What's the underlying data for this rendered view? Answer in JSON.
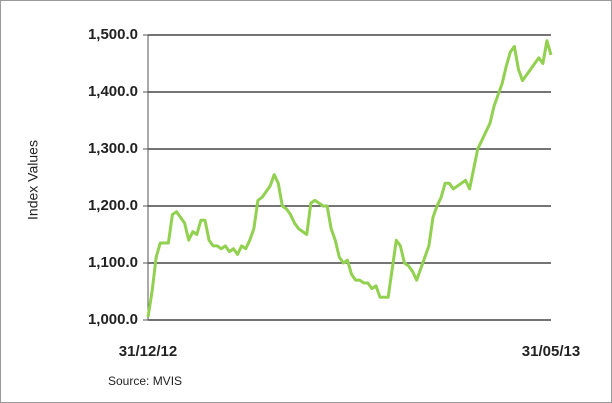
{
  "chart_data": {
    "type": "line",
    "y_label": "Index Values",
    "source": "Source: MVIS",
    "categories": [
      "31/12/12",
      null,
      null,
      null,
      null,
      null,
      null,
      null,
      null,
      null,
      null,
      null,
      null,
      null,
      null,
      null,
      null,
      null,
      null,
      null,
      null,
      null,
      null,
      null,
      null,
      null,
      null,
      null,
      null,
      null,
      null,
      null,
      null,
      null,
      null,
      null,
      null,
      null,
      null,
      null,
      null,
      null,
      null,
      null,
      null,
      null,
      null,
      null,
      null,
      null,
      null,
      null,
      null,
      null,
      null,
      null,
      null,
      null,
      null,
      null,
      null,
      null,
      null,
      null,
      null,
      null,
      null,
      null,
      null,
      null,
      null,
      null,
      null,
      null,
      null,
      null,
      null,
      null,
      null,
      null,
      null,
      null,
      null,
      null,
      null,
      null,
      null,
      null,
      null,
      null,
      null,
      null,
      null,
      null,
      null,
      null,
      null,
      null,
      null,
      "31/05/13"
    ],
    "values": [
      1005,
      1050,
      1110,
      1135,
      1135,
      1135,
      1185,
      1190,
      1180,
      1170,
      1140,
      1155,
      1150,
      1175,
      1175,
      1140,
      1130,
      1130,
      1125,
      1130,
      1120,
      1125,
      1115,
      1130,
      1125,
      1140,
      1160,
      1210,
      1215,
      1225,
      1235,
      1255,
      1240,
      1200,
      1195,
      1185,
      1170,
      1160,
      1155,
      1150,
      1205,
      1210,
      1205,
      1200,
      1200,
      1160,
      1140,
      1110,
      1100,
      1105,
      1080,
      1070,
      1070,
      1065,
      1065,
      1055,
      1060,
      1040,
      1040,
      1040,
      1090,
      1140,
      1130,
      1100,
      1095,
      1085,
      1070,
      1090,
      1110,
      1130,
      1180,
      1200,
      1215,
      1240,
      1240,
      1230,
      1235,
      1240,
      1245,
      1230,
      1265,
      1300,
      1315,
      1330,
      1345,
      1375,
      1395,
      1415,
      1445,
      1470,
      1480,
      1440,
      1420,
      1430,
      1440,
      1450,
      1460,
      1450,
      1490,
      1465
    ],
    "color": "#92d050",
    "ylim": [
      1000,
      1500
    ],
    "yticks": [
      {
        "value": 1000,
        "label": "1,000.0"
      },
      {
        "value": 1100,
        "label": "1,100.0"
      },
      {
        "value": 1200,
        "label": "1,200.0"
      },
      {
        "value": 1300,
        "label": "1,300.0"
      },
      {
        "value": 1400,
        "label": "1,400.0"
      },
      {
        "value": 1500,
        "label": "1,500.0"
      }
    ],
    "grid": true
  }
}
